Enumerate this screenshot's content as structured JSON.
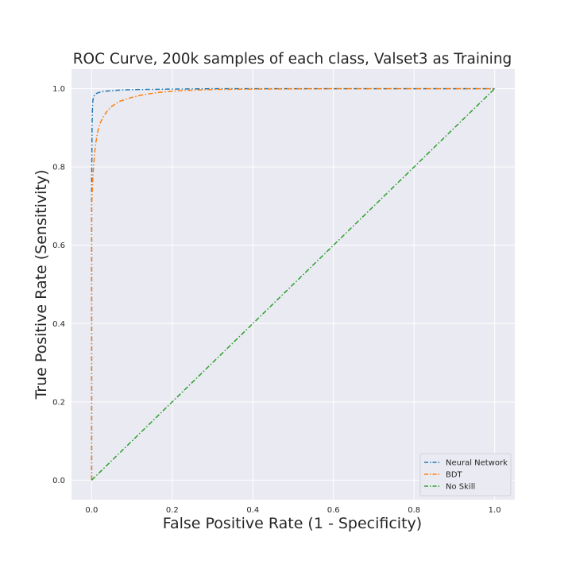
{
  "chart_data": {
    "type": "line",
    "title": "ROC Curve, 200k samples of each class, Valset3 as Training",
    "xlabel": "False Positive Rate (1 - Specificity)",
    "ylabel": "True Positive Rate (Sensitivity)",
    "xlim": [
      -0.05,
      1.05
    ],
    "ylim": [
      -0.05,
      1.05
    ],
    "x_ticks": [
      "0.0",
      "0.2",
      "0.4",
      "0.6",
      "0.8",
      "1.0"
    ],
    "y_ticks": [
      "0.0",
      "0.2",
      "0.4",
      "0.6",
      "0.8",
      "1.0"
    ],
    "grid": true,
    "background": "#eaeaf2",
    "legend_position": "lower-right",
    "series": [
      {
        "name": "Neural Network",
        "color": "#1f77b4",
        "linestyle": "dashdot",
        "x": [
          0,
          0,
          0.001,
          0.002,
          0.003,
          0.005,
          0.008,
          0.012,
          0.02,
          0.03,
          0.05,
          0.08,
          0.12,
          0.2,
          0.3,
          0.5,
          0.7,
          1.0
        ],
        "y": [
          0,
          0.75,
          0.9,
          0.95,
          0.97,
          0.98,
          0.984,
          0.988,
          0.991,
          0.993,
          0.995,
          0.997,
          0.998,
          0.999,
          1.0,
          1.0,
          1.0,
          1.0
        ]
      },
      {
        "name": "BDT",
        "color": "#ff7f0e",
        "linestyle": "dashdot",
        "x": [
          0,
          0,
          0.002,
          0.004,
          0.007,
          0.01,
          0.015,
          0.02,
          0.03,
          0.04,
          0.05,
          0.07,
          0.1,
          0.13,
          0.17,
          0.22,
          0.3,
          0.4,
          0.6,
          1.0
        ],
        "y": [
          0,
          0.7,
          0.75,
          0.79,
          0.83,
          0.86,
          0.89,
          0.91,
          0.93,
          0.945,
          0.955,
          0.968,
          0.978,
          0.985,
          0.991,
          0.995,
          0.998,
          0.999,
          1.0,
          1.0
        ]
      },
      {
        "name": "No Skill",
        "color": "#2ca02c",
        "linestyle": "dashdot",
        "x": [
          0,
          1
        ],
        "y": [
          0,
          1
        ]
      }
    ]
  }
}
